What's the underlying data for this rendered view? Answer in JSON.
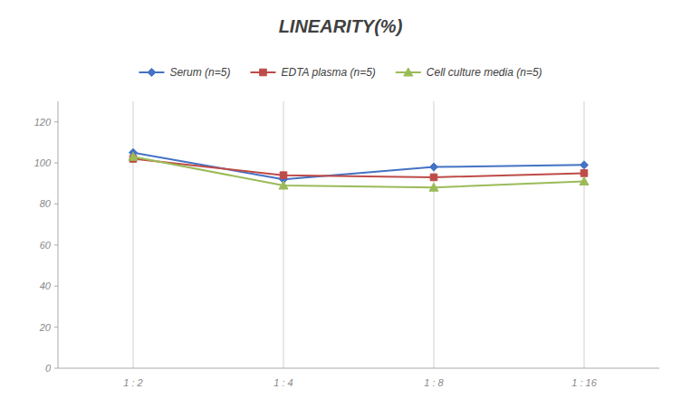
{
  "chart_data": {
    "type": "line",
    "title": "LINEARITY(%)",
    "categories": [
      "1 : 2",
      "1 : 4",
      "1 : 8",
      "1 : 16"
    ],
    "series": [
      {
        "name": "Serum (n=5)",
        "color": "#4472C4",
        "marker": "diamond",
        "values": [
          105,
          92,
          98,
          99
        ]
      },
      {
        "name": "EDTA plasma (n=5)",
        "color": "#BE4B48",
        "marker": "square",
        "values": [
          102,
          94,
          93,
          95
        ]
      },
      {
        "name": "Cell culture media (n=5)",
        "color": "#9BBB59",
        "marker": "triangle",
        "values": [
          103,
          89,
          88,
          91
        ]
      }
    ],
    "ylim": [
      0,
      130
    ],
    "yticks": [
      0,
      20,
      40,
      60,
      80,
      100,
      120
    ],
    "grid": "x",
    "legend": "top"
  }
}
